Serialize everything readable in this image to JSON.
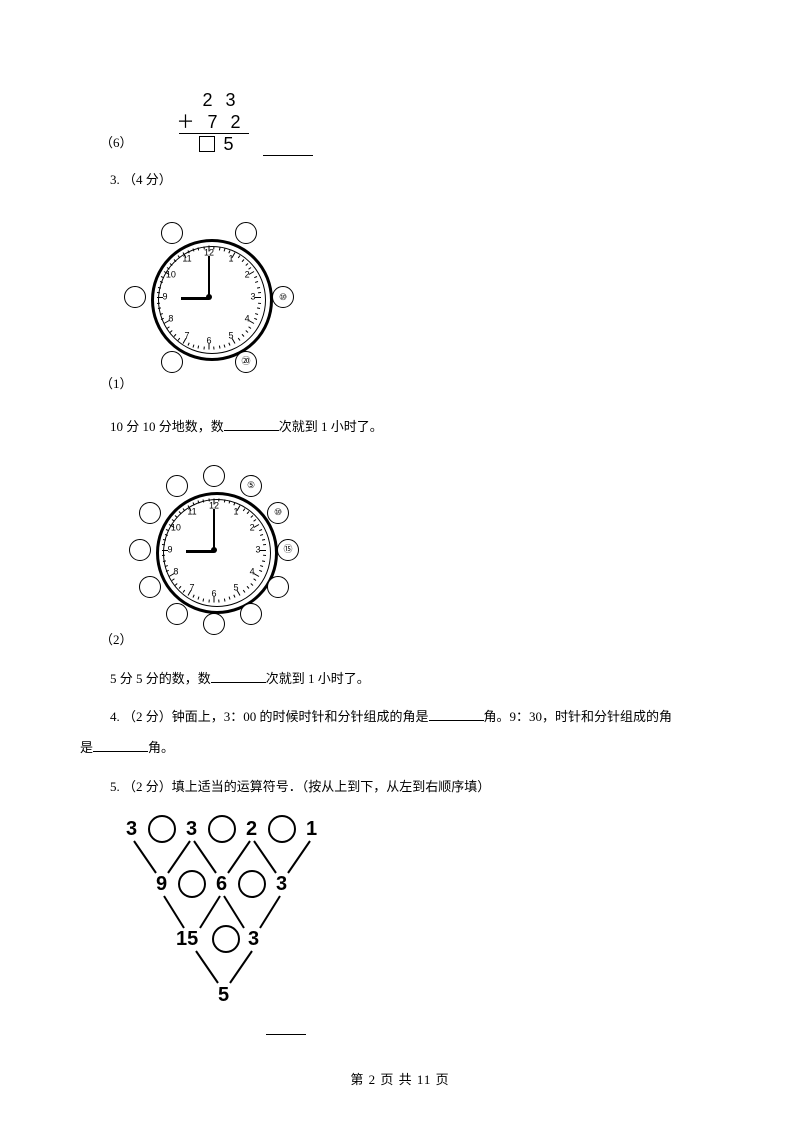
{
  "q6": {
    "label": "（6）",
    "addition": {
      "a": "2 3",
      "b": "＋ 7 2",
      "result_suffix": "5"
    }
  },
  "q3": {
    "header": "3.   （4 分）",
    "p1": {
      "label": "（1）",
      "text_a": "10 分 10 分地数，数",
      "text_b": "次就到 1 小时了。",
      "clock": {
        "numbers": [
          "12",
          "1",
          "2",
          "3",
          "4",
          "5",
          "6",
          "7",
          "8",
          "9",
          "10",
          "11"
        ],
        "hour_angle": -180,
        "minute_angle": -90,
        "outer_count": 6,
        "outer_labels": {
          "1": "⑩",
          "2": "⑳"
        }
      }
    },
    "p2": {
      "label": "（2）",
      "text_a": "5 分 5 分的数，数",
      "text_b": "次就到 1 小时了。",
      "clock": {
        "numbers": [
          "12",
          "1",
          "2",
          "3",
          "4",
          "5",
          "6",
          "7",
          "8",
          "9",
          "10",
          "11"
        ],
        "hour_angle": -180,
        "minute_angle": -90,
        "outer_count": 12,
        "outer_labels": {
          "0": "⑤",
          "1": "⑩",
          "2": "⑮"
        }
      }
    }
  },
  "q4": {
    "pre": "4.    （2 分）钟面上，3：00 的时候时针和分针组成的角是",
    "mid": "角。9：30，时针和分针组成的角",
    "line2a": "是",
    "line2b": "角。"
  },
  "q5": {
    "header": "5.   （2 分）填上适当的运算符号．（按从上到下，从左到右顺序填）",
    "tri": {
      "row1": [
        "3",
        "3",
        "2",
        "1"
      ],
      "row2": [
        "9",
        "6",
        "3"
      ],
      "row3": [
        "15",
        "3"
      ],
      "row4": [
        "5"
      ]
    }
  },
  "footer": {
    "a": "第 ",
    "page": "2",
    "b": " 页 共 ",
    "total": "11",
    "c": " 页"
  },
  "style": {
    "text_color": "#000000",
    "background": "#ffffff",
    "base_fontsize": 13
  }
}
